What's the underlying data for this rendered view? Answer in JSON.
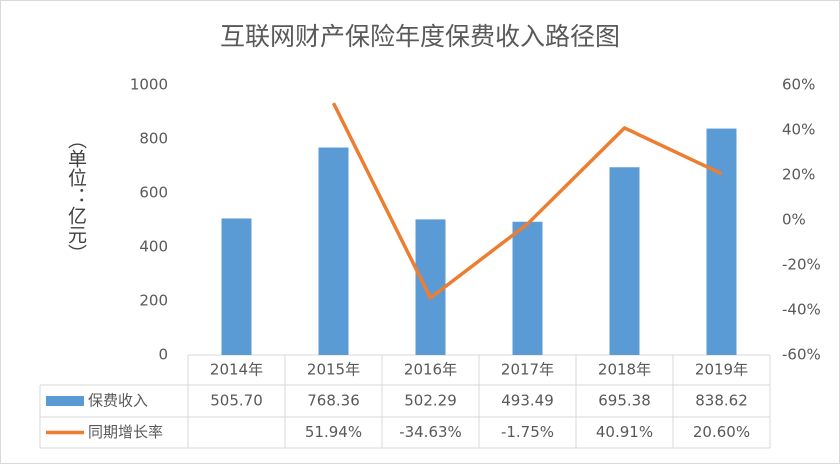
{
  "chart_data": {
    "type": "bar",
    "title": "互联网财产保险年度保费收入路径图",
    "y_label": "（单位：亿元）",
    "categories": [
      "2014年",
      "2015年",
      "2016年",
      "2017年",
      "2018年",
      "2019年"
    ],
    "series": [
      {
        "name": "保费收入",
        "type": "bar",
        "color": "#5b9bd5",
        "values": [
          505.7,
          768.36,
          502.29,
          493.49,
          695.38,
          838.62
        ],
        "value_labels": [
          "505.70",
          "768.36",
          "502.29",
          "493.49",
          "695.38",
          "838.62"
        ]
      },
      {
        "name": "同期增长率",
        "type": "line",
        "axis": "y2",
        "color": "#ed7d31",
        "values": [
          null,
          51.94,
          -34.63,
          -1.75,
          40.91,
          20.6
        ],
        "value_labels": [
          null,
          "51.94%",
          "-34.63%",
          "-1.75%",
          "40.91%",
          "20.60%"
        ]
      }
    ],
    "ylim": [
      0,
      1000
    ],
    "yticks": [
      0,
      200,
      400,
      600,
      800,
      1000
    ],
    "y2lim": [
      -60,
      60
    ],
    "y2ticks": [
      {
        "value": -60,
        "label": "-60%"
      },
      {
        "value": -40,
        "label": "-40%"
      },
      {
        "value": -20,
        "label": "-20%"
      },
      {
        "value": 0,
        "label": "0%"
      },
      {
        "value": 20,
        "label": "20%"
      },
      {
        "value": 40,
        "label": "40%"
      },
      {
        "value": 60,
        "label": "60%"
      }
    ],
    "grid": false
  }
}
